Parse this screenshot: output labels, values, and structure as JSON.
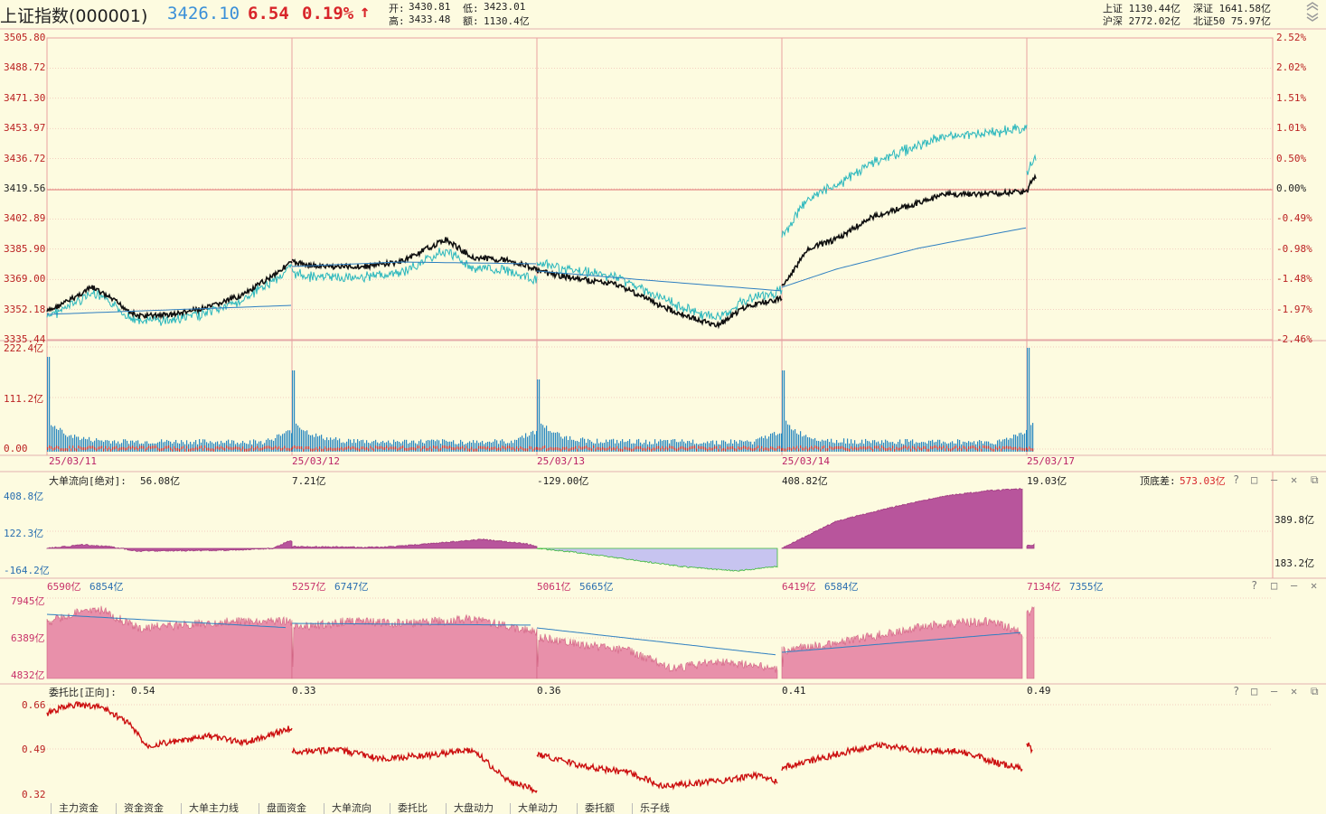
{
  "header": {
    "title": "上证指数(000001)",
    "price": "3426.10",
    "change": "6.54",
    "pct": "0.19%",
    "arrow": "↑",
    "open_label": "开:",
    "open": "3430.81",
    "high_label": "高:",
    "high": "3433.48",
    "low_label": "低:",
    "low": "3423.01",
    "amount_label": "额:",
    "amount": "1130.4亿",
    "market": {
      "sh": "上证 1130.44亿",
      "sz": "深证 1641.58亿",
      "hs": "沪深 2772.02亿",
      "bj": "北证50 75.97亿"
    }
  },
  "price_pane": {
    "left_ticks": [
      "3505.80",
      "3488.72",
      "3471.30",
      "3453.97",
      "3436.72",
      "3419.56",
      "3402.89",
      "3385.90",
      "3369.00",
      "3352.18",
      "3335.44"
    ],
    "right_ticks": [
      "2.52%",
      "2.02%",
      "1.51%",
      "1.01%",
      "0.50%",
      "0.00%",
      "-0.49%",
      "-0.98%",
      "-1.48%",
      "-1.97%",
      "-2.46%"
    ]
  },
  "volume_pane": {
    "ticks": [
      "222.4亿",
      "111.2亿",
      "0.00"
    ],
    "dates": [
      "25/03/11",
      "25/03/12",
      "25/03/13",
      "25/03/14",
      "25/03/17"
    ]
  },
  "big_order_pane": {
    "title": "大单流向[绝对]:",
    "values": [
      "56.08亿",
      "7.21亿",
      "-129.00亿",
      "408.82亿",
      "19.03亿"
    ],
    "ticks": [
      "408.8亿",
      "122.3亿",
      "-164.2亿"
    ],
    "right_values": [
      "389.8亿",
      "183.2亿"
    ],
    "diff_label": "顶底差:",
    "diff_value": "573.03亿"
  },
  "amount_pane": {
    "pairs": [
      [
        "6590亿",
        "6854亿"
      ],
      [
        "5257亿",
        "6747亿"
      ],
      [
        "5061亿",
        "5665亿"
      ],
      [
        "6419亿",
        "6584亿"
      ],
      [
        "7134亿",
        "7355亿"
      ]
    ],
    "ticks": [
      "7945亿",
      "6389亿",
      "4832亿"
    ]
  },
  "ratio_pane": {
    "title": "委托比[正向]:",
    "values": [
      "0.54",
      "0.33",
      "0.36",
      "0.41",
      "0.49"
    ],
    "ticks": [
      "0.66",
      "0.49",
      "0.32"
    ]
  },
  "window_buttons": {
    "help": "?",
    "max": "□",
    "min": "—",
    "close": "✕",
    "restore": "⧉"
  },
  "tabs": [
    "主力资金",
    "资金资金",
    "大单主力线",
    "盘面资金",
    "大单流向",
    "委托比",
    "大盘动力",
    "大单动力",
    "委托额",
    "乐子线"
  ],
  "colors": {
    "grid": "#e9a0a0",
    "price_line": "#111111",
    "avg_line": "#2f7fc1",
    "cyan_line": "#2ab7bd",
    "volume_bar": "#2a88c0",
    "big_order_fill": "#b8559c",
    "amount_fill": "#e890aa",
    "ratio_line": "#cc1111"
  }
}
